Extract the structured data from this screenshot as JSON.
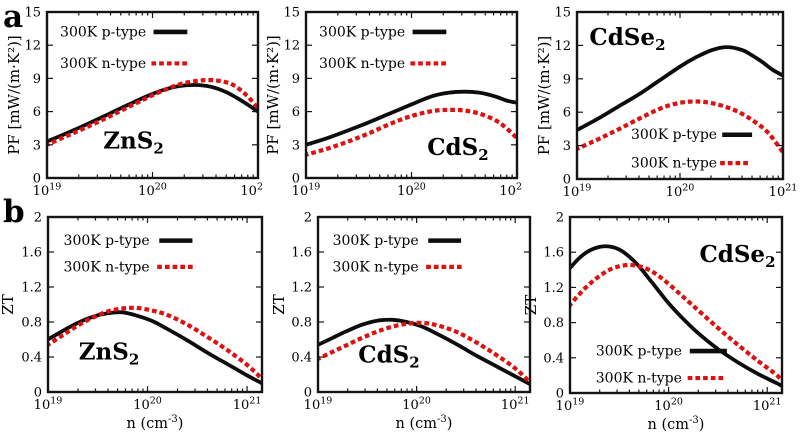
{
  "figure": {
    "panel_labels": {
      "a": "a",
      "b": "b"
    },
    "colors": {
      "p_type": "#0d0d0d",
      "n_type": "#dd1111",
      "frame": "#141414",
      "background": "#ffffff"
    }
  },
  "chart_data": [
    {
      "id": "pf-zns2",
      "type": "line",
      "title": {
        "base": "ZnS",
        "sub": "2"
      },
      "ylabel": "PF [mW/(m·K²)]",
      "xlabel_parts": null,
      "x_scale": "log",
      "xlim_log10": [
        19,
        21.0
      ],
      "ylim": [
        0,
        15
      ],
      "yticks": [
        0,
        3,
        6,
        9,
        12,
        15
      ],
      "xticks": [
        {
          "log10": 19,
          "base": "10",
          "sup": "19"
        },
        {
          "log10": 20,
          "base": "10",
          "sup": "20"
        },
        {
          "log10": 21,
          "base": "10",
          "sup": "2",
          "clipped": true
        }
      ],
      "legend_position": "top-center",
      "title_position": "bottom-center",
      "series": [
        {
          "name": "300K p-type",
          "line": "solid",
          "color": "#0d0d0d",
          "points": [
            [
              19,
              3.3
            ],
            [
              19.2,
              4.1
            ],
            [
              19.4,
              4.95
            ],
            [
              19.6,
              5.85
            ],
            [
              19.8,
              6.75
            ],
            [
              19.95,
              7.4
            ],
            [
              20.1,
              7.95
            ],
            [
              20.25,
              8.3
            ],
            [
              20.4,
              8.4
            ],
            [
              20.55,
              8.25
            ],
            [
              20.7,
              7.75
            ],
            [
              20.85,
              6.95
            ],
            [
              21.0,
              6.0
            ]
          ]
        },
        {
          "name": "300K n-type",
          "line": "dotted",
          "color": "#dd1111",
          "points": [
            [
              19,
              3.0
            ],
            [
              19.2,
              3.85
            ],
            [
              19.4,
              4.7
            ],
            [
              19.6,
              5.6
            ],
            [
              19.8,
              6.55
            ],
            [
              19.95,
              7.25
            ],
            [
              20.1,
              7.9
            ],
            [
              20.25,
              8.45
            ],
            [
              20.4,
              8.75
            ],
            [
              20.55,
              8.85
            ],
            [
              20.7,
              8.65
            ],
            [
              20.8,
              8.2
            ],
            [
              20.9,
              7.4
            ],
            [
              21.0,
              6.3
            ]
          ]
        }
      ]
    },
    {
      "id": "pf-cds2",
      "type": "line",
      "title": {
        "base": "CdS",
        "sub": "2"
      },
      "ylabel": "PF [mW/(m·K²)]",
      "xlabel_parts": null,
      "x_scale": "log",
      "xlim_log10": [
        19,
        21.0
      ],
      "ylim": [
        0,
        15
      ],
      "yticks": [
        0,
        3,
        6,
        9,
        12,
        15
      ],
      "xticks": [
        {
          "log10": 19,
          "base": "10",
          "sup": "19"
        },
        {
          "log10": 20,
          "base": "10",
          "sup": "20"
        },
        {
          "log10": 21,
          "base": "10",
          "sup": "2",
          "clipped": true
        }
      ],
      "legend_position": "top-center",
      "title_position": "bottom-right",
      "series": [
        {
          "name": "300K p-type",
          "line": "solid",
          "color": "#0d0d0d",
          "points": [
            [
              19,
              3.0
            ],
            [
              19.2,
              3.6
            ],
            [
              19.4,
              4.3
            ],
            [
              19.6,
              5.05
            ],
            [
              19.8,
              5.85
            ],
            [
              20.0,
              6.65
            ],
            [
              20.2,
              7.4
            ],
            [
              20.35,
              7.7
            ],
            [
              20.5,
              7.8
            ],
            [
              20.65,
              7.7
            ],
            [
              20.8,
              7.35
            ],
            [
              20.9,
              7.0
            ],
            [
              21.0,
              6.8
            ]
          ]
        },
        {
          "name": "300K n-type",
          "line": "dotted",
          "color": "#dd1111",
          "points": [
            [
              19,
              2.1
            ],
            [
              19.2,
              2.65
            ],
            [
              19.4,
              3.3
            ],
            [
              19.6,
              4.05
            ],
            [
              19.8,
              4.9
            ],
            [
              20.0,
              5.6
            ],
            [
              20.2,
              6.05
            ],
            [
              20.35,
              6.15
            ],
            [
              20.5,
              6.1
            ],
            [
              20.65,
              5.8
            ],
            [
              20.8,
              5.2
            ],
            [
              20.9,
              4.5
            ],
            [
              21.0,
              3.6
            ]
          ]
        }
      ]
    },
    {
      "id": "pf-cdse2",
      "type": "line",
      "title": {
        "base": "CdSe",
        "sub": "2"
      },
      "ylabel": "PF [mW/(m·K²)]",
      "xlabel_parts": null,
      "x_scale": "log",
      "xlim_log10": [
        19,
        21.0
      ],
      "ylim": [
        0,
        15
      ],
      "yticks": [
        0,
        3,
        6,
        9,
        12,
        15
      ],
      "xticks": [
        {
          "log10": 19,
          "base": "10",
          "sup": "19"
        },
        {
          "log10": 20,
          "base": "10",
          "sup": "20"
        },
        {
          "log10": 21,
          "base": "10",
          "sup": "21"
        }
      ],
      "legend_position": "bottom-right",
      "title_position": "top-left",
      "series": [
        {
          "name": "300K p-type",
          "line": "solid",
          "color": "#0d0d0d",
          "points": [
            [
              19,
              4.4
            ],
            [
              19.2,
              5.4
            ],
            [
              19.4,
              6.5
            ],
            [
              19.6,
              7.6
            ],
            [
              19.8,
              8.85
            ],
            [
              20.0,
              10.1
            ],
            [
              20.15,
              10.9
            ],
            [
              20.3,
              11.55
            ],
            [
              20.45,
              11.85
            ],
            [
              20.6,
              11.6
            ],
            [
              20.7,
              11.1
            ],
            [
              20.8,
              10.5
            ],
            [
              20.9,
              9.8
            ],
            [
              21.0,
              9.3
            ]
          ]
        },
        {
          "name": "300K n-type",
          "line": "dotted",
          "color": "#dd1111",
          "points": [
            [
              19,
              2.7
            ],
            [
              19.2,
              3.55
            ],
            [
              19.4,
              4.45
            ],
            [
              19.6,
              5.4
            ],
            [
              19.8,
              6.3
            ],
            [
              19.95,
              6.75
            ],
            [
              20.1,
              6.95
            ],
            [
              20.25,
              6.9
            ],
            [
              20.4,
              6.6
            ],
            [
              20.55,
              6.1
            ],
            [
              20.7,
              5.3
            ],
            [
              20.85,
              4.2
            ],
            [
              21.0,
              2.4
            ]
          ]
        }
      ]
    },
    {
      "id": "zt-zns2",
      "type": "line",
      "title": {
        "base": "ZnS",
        "sub": "2"
      },
      "ylabel": "ZT",
      "xlabel_parts": {
        "pre": "n (cm",
        "sup": "-3",
        "post": ")"
      },
      "x_scale": "log",
      "xlim_log10": [
        19,
        21.15
      ],
      "ylim": [
        0,
        2
      ],
      "yticks": [
        0,
        0.4,
        0.8,
        1.2,
        1.6,
        2
      ],
      "xticks": [
        {
          "log10": 19,
          "base": "10",
          "sup": "19"
        },
        {
          "log10": 20,
          "base": "10",
          "sup": "20"
        },
        {
          "log10": 21,
          "base": "10",
          "sup": "21"
        }
      ],
      "legend_position": "top-center",
      "title_position": "bottom-left",
      "series": [
        {
          "name": "300K p-type",
          "line": "solid",
          "color": "#0d0d0d",
          "points": [
            [
              19,
              0.6
            ],
            [
              19.15,
              0.7
            ],
            [
              19.3,
              0.79
            ],
            [
              19.45,
              0.86
            ],
            [
              19.6,
              0.9
            ],
            [
              19.75,
              0.91
            ],
            [
              19.9,
              0.87
            ],
            [
              20.05,
              0.81
            ],
            [
              20.2,
              0.72
            ],
            [
              20.4,
              0.59
            ],
            [
              20.6,
              0.45
            ],
            [
              20.8,
              0.32
            ],
            [
              21.0,
              0.19
            ],
            [
              21.15,
              0.1
            ]
          ]
        },
        {
          "name": "300K n-type",
          "line": "dotted",
          "color": "#dd1111",
          "points": [
            [
              19,
              0.54
            ],
            [
              19.15,
              0.65
            ],
            [
              19.3,
              0.76
            ],
            [
              19.45,
              0.85
            ],
            [
              19.6,
              0.92
            ],
            [
              19.75,
              0.955
            ],
            [
              19.9,
              0.96
            ],
            [
              20.05,
              0.93
            ],
            [
              20.2,
              0.88
            ],
            [
              20.4,
              0.77
            ],
            [
              20.6,
              0.63
            ],
            [
              20.8,
              0.48
            ],
            [
              21.0,
              0.31
            ],
            [
              21.15,
              0.15
            ]
          ]
        }
      ]
    },
    {
      "id": "zt-cds2",
      "type": "line",
      "title": {
        "base": "CdS",
        "sub": "2"
      },
      "ylabel": "ZT",
      "xlabel_parts": {
        "pre": "n (cm",
        "sup": "-3",
        "post": ")"
      },
      "x_scale": "log",
      "xlim_log10": [
        19,
        21.15
      ],
      "ylim": [
        0,
        2
      ],
      "yticks": [
        0,
        0.4,
        0.8,
        1.2,
        1.6,
        2
      ],
      "xticks": [
        {
          "log10": 19,
          "base": "10",
          "sup": "19"
        },
        {
          "log10": 20,
          "base": "10",
          "sup": "20"
        },
        {
          "log10": 21,
          "base": "10",
          "sup": "21"
        }
      ],
      "legend_position": "top-center",
      "title_position": "bottom-left",
      "series": [
        {
          "name": "300K p-type",
          "line": "solid",
          "color": "#0d0d0d",
          "points": [
            [
              19,
              0.54
            ],
            [
              19.15,
              0.62
            ],
            [
              19.3,
              0.7
            ],
            [
              19.45,
              0.77
            ],
            [
              19.6,
              0.815
            ],
            [
              19.75,
              0.825
            ],
            [
              19.9,
              0.8
            ],
            [
              20.05,
              0.75
            ],
            [
              20.2,
              0.67
            ],
            [
              20.4,
              0.55
            ],
            [
              20.6,
              0.42
            ],
            [
              20.8,
              0.3
            ],
            [
              21.0,
              0.18
            ],
            [
              21.15,
              0.09
            ]
          ]
        },
        {
          "name": "300K n-type",
          "line": "dotted",
          "color": "#dd1111",
          "points": [
            [
              19,
              0.38
            ],
            [
              19.15,
              0.46
            ],
            [
              19.3,
              0.54
            ],
            [
              19.45,
              0.62
            ],
            [
              19.6,
              0.69
            ],
            [
              19.75,
              0.745
            ],
            [
              19.9,
              0.78
            ],
            [
              20.05,
              0.79
            ],
            [
              20.2,
              0.765
            ],
            [
              20.4,
              0.69
            ],
            [
              20.6,
              0.57
            ],
            [
              20.8,
              0.43
            ],
            [
              21.0,
              0.27
            ],
            [
              21.15,
              0.11
            ]
          ]
        }
      ]
    },
    {
      "id": "zt-cdse2",
      "type": "line",
      "title": {
        "base": "CdSe",
        "sub": "2"
      },
      "ylabel": "ZT",
      "xlabel_parts": {
        "pre": "n (cm",
        "sup": "-3",
        "post": ")"
      },
      "x_scale": "log",
      "xlim_log10": [
        19,
        21.15
      ],
      "ylim": [
        0,
        2
      ],
      "yticks": [
        0,
        0.4,
        0.8,
        1.2,
        1.6,
        2
      ],
      "xticks": [
        {
          "log10": 19,
          "base": "10",
          "sup": "19"
        },
        {
          "log10": 20,
          "base": "10",
          "sup": "20"
        },
        {
          "log10": 21,
          "base": "10",
          "sup": "21"
        }
      ],
      "legend_position": "bottom-left",
      "title_position": "top-right",
      "series": [
        {
          "name": "300K p-type",
          "line": "solid",
          "color": "#0d0d0d",
          "points": [
            [
              19,
              1.42
            ],
            [
              19.1,
              1.54
            ],
            [
              19.2,
              1.62
            ],
            [
              19.3,
              1.66
            ],
            [
              19.4,
              1.665
            ],
            [
              19.5,
              1.63
            ],
            [
              19.6,
              1.55
            ],
            [
              19.7,
              1.44
            ],
            [
              19.8,
              1.3
            ],
            [
              19.9,
              1.16
            ],
            [
              20.0,
              1.02
            ],
            [
              20.15,
              0.84
            ],
            [
              20.3,
              0.68
            ],
            [
              20.5,
              0.5
            ],
            [
              20.7,
              0.35
            ],
            [
              20.9,
              0.22
            ],
            [
              21.1,
              0.11
            ],
            [
              21.15,
              0.08
            ]
          ]
        },
        {
          "name": "300K n-type",
          "line": "dotted",
          "color": "#dd1111",
          "points": [
            [
              19,
              1.0
            ],
            [
              19.1,
              1.13
            ],
            [
              19.2,
              1.24
            ],
            [
              19.3,
              1.33
            ],
            [
              19.4,
              1.4
            ],
            [
              19.5,
              1.44
            ],
            [
              19.6,
              1.455
            ],
            [
              19.7,
              1.44
            ],
            [
              19.8,
              1.4
            ],
            [
              19.9,
              1.33
            ],
            [
              20.0,
              1.24
            ],
            [
              20.15,
              1.09
            ],
            [
              20.3,
              0.94
            ],
            [
              20.5,
              0.74
            ],
            [
              20.7,
              0.55
            ],
            [
              20.9,
              0.37
            ],
            [
              21.1,
              0.2
            ],
            [
              21.15,
              0.12
            ]
          ]
        }
      ]
    }
  ]
}
